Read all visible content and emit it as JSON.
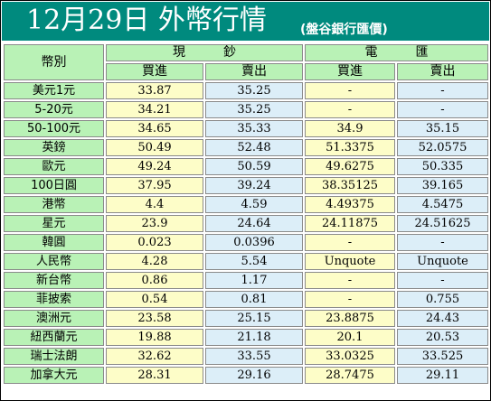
{
  "title": "12月29日 外幣行情",
  "subtitle": "(盤谷銀行匯價)",
  "headers": {
    "currency": "幣別",
    "cash": "現　　　鈔",
    "telegraphic": "電　　　匯",
    "buy": "買進",
    "sell": "賣出"
  },
  "rows": [
    {
      "label": "美元1元",
      "cash_buy": "33.87",
      "cash_sell": "35.25",
      "tt_buy": "-",
      "tt_sell": "-"
    },
    {
      "label": "5-20元",
      "cash_buy": "34.21",
      "cash_sell": "35.25",
      "tt_buy": "-",
      "tt_sell": "-"
    },
    {
      "label": "50-100元",
      "cash_buy": "34.65",
      "cash_sell": "35.33",
      "tt_buy": "34.9",
      "tt_sell": "35.15"
    },
    {
      "label": "英鎊",
      "cash_buy": "50.49",
      "cash_sell": "52.48",
      "tt_buy": "51.3375",
      "tt_sell": "52.0575"
    },
    {
      "label": "歐元",
      "cash_buy": "49.24",
      "cash_sell": "50.59",
      "tt_buy": "49.6275",
      "tt_sell": "50.335"
    },
    {
      "label": "100日圓",
      "cash_buy": "37.95",
      "cash_sell": "39.24",
      "tt_buy": "38.35125",
      "tt_sell": "39.165"
    },
    {
      "label": "港幣",
      "cash_buy": "4.4",
      "cash_sell": "4.59",
      "tt_buy": "4.49375",
      "tt_sell": "4.5475"
    },
    {
      "label": "星元",
      "cash_buy": "23.9",
      "cash_sell": "24.64",
      "tt_buy": "24.11875",
      "tt_sell": "24.51625"
    },
    {
      "label": "韓圓",
      "cash_buy": "0.023",
      "cash_sell": "0.0396",
      "tt_buy": "-",
      "tt_sell": "-"
    },
    {
      "label": "人民幣",
      "cash_buy": "4.28",
      "cash_sell": "5.54",
      "tt_buy": "Unquote",
      "tt_sell": "Unquote"
    },
    {
      "label": "新台幣",
      "cash_buy": "0.86",
      "cash_sell": "1.17",
      "tt_buy": "-",
      "tt_sell": "-"
    },
    {
      "label": "菲披索",
      "cash_buy": "0.54",
      "cash_sell": "0.81",
      "tt_buy": "-",
      "tt_sell": "0.755"
    },
    {
      "label": "澳洲元",
      "cash_buy": "23.58",
      "cash_sell": "25.15",
      "tt_buy": "23.8875",
      "tt_sell": "24.43"
    },
    {
      "label": "紐西蘭元",
      "cash_buy": "19.88",
      "cash_sell": "21.18",
      "tt_buy": "20.1",
      "tt_sell": "20.53"
    },
    {
      "label": "瑞士法朗",
      "cash_buy": "32.62",
      "cash_sell": "33.55",
      "tt_buy": "33.0325",
      "tt_sell": "33.525"
    },
    {
      "label": "加拿大元",
      "cash_buy": "28.31",
      "cash_sell": "29.16",
      "tt_buy": "28.7475",
      "tt_sell": "29.11"
    }
  ]
}
